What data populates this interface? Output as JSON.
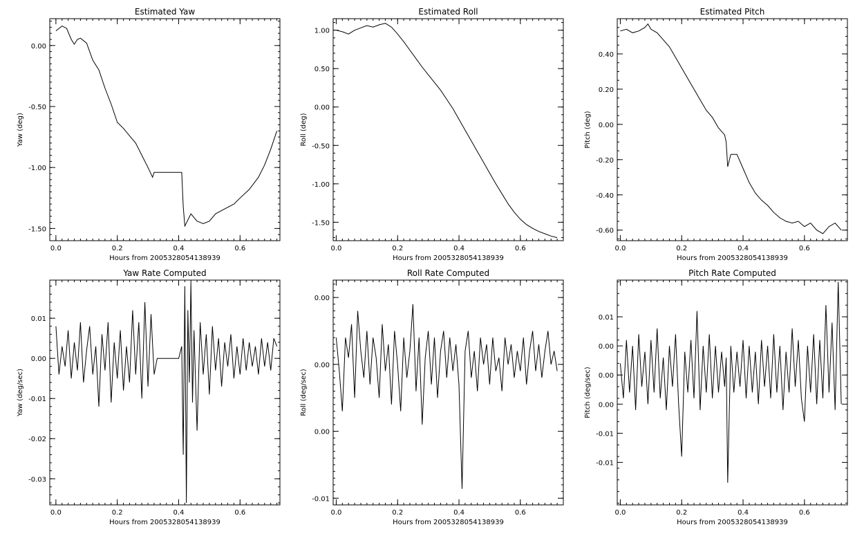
{
  "figure": {
    "background": "#ffffff",
    "line_color": "#000000"
  },
  "chart_data": [
    {
      "type": "line",
      "title": "Estimated Yaw",
      "xlabel": "Hours from 2005328054138939",
      "ylabel": "Yaw (deg)",
      "xlim": [
        -0.02,
        0.73
      ],
      "ylim": [
        -1.6,
        0.22
      ],
      "xticks": [
        0.0,
        0.2,
        0.4,
        0.6
      ],
      "xtick_labels": [
        "0.0",
        "0.2",
        "0.4",
        "0.6"
      ],
      "yticks": [
        0.0,
        -0.5,
        -1.0,
        -1.5
      ],
      "ytick_labels": [
        "0.00",
        "-0.50",
        "-1.00",
        "-1.50"
      ],
      "grid": false,
      "series": [
        {
          "x": [
            0.0,
            0.02,
            0.035,
            0.05,
            0.06,
            0.07,
            0.08,
            0.1,
            0.12,
            0.14,
            0.16,
            0.18,
            0.2,
            0.22,
            0.24,
            0.26,
            0.28,
            0.3,
            0.315,
            0.32,
            0.41,
            0.415,
            0.42,
            0.44,
            0.46,
            0.48,
            0.5,
            0.52,
            0.55,
            0.58,
            0.6,
            0.63,
            0.66,
            0.68,
            0.7,
            0.72
          ],
          "y": [
            0.12,
            0.16,
            0.14,
            0.05,
            0.01,
            0.05,
            0.06,
            0.02,
            -0.12,
            -0.2,
            -0.35,
            -0.48,
            -0.63,
            -0.68,
            -0.74,
            -0.8,
            -0.9,
            -1.0,
            -1.08,
            -1.04,
            -1.04,
            -1.32,
            -1.48,
            -1.38,
            -1.44,
            -1.46,
            -1.44,
            -1.38,
            -1.34,
            -1.3,
            -1.25,
            -1.18,
            -1.08,
            -0.98,
            -0.85,
            -0.7
          ]
        }
      ]
    },
    {
      "type": "line",
      "title": "Estimated Roll",
      "xlabel": "Hours from 2005328054138939",
      "ylabel": "Roll (deg)",
      "xlim": [
        -0.01,
        0.74
      ],
      "ylim": [
        -1.74,
        1.15
      ],
      "xticks": [
        0.0,
        0.2,
        0.4,
        0.6
      ],
      "xtick_labels": [
        "0.0",
        "0.2",
        "0.4",
        "0.6"
      ],
      "yticks": [
        1.0,
        0.5,
        0.0,
        -0.5,
        -1.0,
        -1.5
      ],
      "ytick_labels": [
        "1.00",
        "0.50",
        "0.00",
        "-0.50",
        "-1.00",
        "-1.50"
      ],
      "grid": false,
      "series": [
        {
          "x": [
            0.0,
            0.02,
            0.04,
            0.06,
            0.08,
            0.1,
            0.12,
            0.14,
            0.16,
            0.18,
            0.2,
            0.22,
            0.24,
            0.26,
            0.28,
            0.3,
            0.32,
            0.34,
            0.36,
            0.38,
            0.4,
            0.42,
            0.44,
            0.46,
            0.48,
            0.5,
            0.52,
            0.54,
            0.56,
            0.58,
            0.6,
            0.62,
            0.64,
            0.66,
            0.68,
            0.7,
            0.72
          ],
          "y": [
            1.0,
            0.98,
            0.95,
            1.0,
            1.03,
            1.06,
            1.04,
            1.07,
            1.09,
            1.04,
            0.95,
            0.85,
            0.74,
            0.63,
            0.52,
            0.42,
            0.32,
            0.22,
            0.1,
            -0.02,
            -0.16,
            -0.3,
            -0.44,
            -0.58,
            -0.72,
            -0.86,
            -1.0,
            -1.13,
            -1.26,
            -1.37,
            -1.46,
            -1.53,
            -1.58,
            -1.62,
            -1.65,
            -1.68,
            -1.7
          ]
        }
      ]
    },
    {
      "type": "line",
      "title": "Estimated Pitch",
      "xlabel": "Hours from 2005328054138939",
      "ylabel": "Pitch (deg)",
      "xlim": [
        -0.01,
        0.74
      ],
      "ylim": [
        -0.66,
        0.6
      ],
      "xticks": [
        0.0,
        0.2,
        0.4,
        0.6
      ],
      "xtick_labels": [
        "0.0",
        "0.2",
        "0.4",
        "0.6"
      ],
      "yticks": [
        0.4,
        0.2,
        0.0,
        -0.2,
        -0.4,
        -0.6
      ],
      "ytick_labels": [
        "0.40",
        "0.20",
        "0.00",
        "-0.20",
        "-0.40",
        "-0.60"
      ],
      "grid": false,
      "series": [
        {
          "x": [
            0.0,
            0.02,
            0.04,
            0.06,
            0.08,
            0.09,
            0.1,
            0.12,
            0.14,
            0.16,
            0.18,
            0.2,
            0.22,
            0.24,
            0.26,
            0.28,
            0.3,
            0.32,
            0.34,
            0.345,
            0.35,
            0.36,
            0.38,
            0.4,
            0.42,
            0.44,
            0.46,
            0.48,
            0.5,
            0.52,
            0.54,
            0.56,
            0.58,
            0.6,
            0.62,
            0.64,
            0.66,
            0.68,
            0.7,
            0.72
          ],
          "y": [
            0.53,
            0.54,
            0.52,
            0.53,
            0.55,
            0.57,
            0.54,
            0.52,
            0.48,
            0.44,
            0.38,
            0.32,
            0.26,
            0.2,
            0.14,
            0.08,
            0.04,
            -0.02,
            -0.06,
            -0.1,
            -0.24,
            -0.17,
            -0.17,
            -0.25,
            -0.33,
            -0.39,
            -0.43,
            -0.46,
            -0.5,
            -0.53,
            -0.55,
            -0.56,
            -0.55,
            -0.58,
            -0.56,
            -0.6,
            -0.62,
            -0.58,
            -0.56,
            -0.6
          ]
        }
      ]
    },
    {
      "type": "line",
      "title": "Yaw Rate Computed",
      "xlabel": "Hours from 2005328054138939",
      "ylabel": "Yaw (deg/sec)",
      "xlim": [
        -0.02,
        0.73
      ],
      "ylim": [
        -0.0365,
        0.0195
      ],
      "xticks": [
        0.0,
        0.2,
        0.4,
        0.6
      ],
      "xtick_labels": [
        "0.0",
        "0.2",
        "0.4",
        "0.6"
      ],
      "yticks": [
        0.01,
        0.0,
        -0.01,
        -0.02,
        -0.03
      ],
      "ytick_labels": [
        "0.01",
        "0.00",
        "-0.01",
        "-0.02",
        "-0.03"
      ],
      "grid": false,
      "series": [
        {
          "x": [
            0.0,
            0.01,
            0.02,
            0.03,
            0.04,
            0.05,
            0.06,
            0.07,
            0.08,
            0.09,
            0.1,
            0.11,
            0.12,
            0.13,
            0.14,
            0.15,
            0.16,
            0.17,
            0.18,
            0.19,
            0.2,
            0.21,
            0.22,
            0.23,
            0.24,
            0.25,
            0.26,
            0.27,
            0.28,
            0.29,
            0.3,
            0.31,
            0.32,
            0.33,
            0.35,
            0.4,
            0.41,
            0.415,
            0.42,
            0.425,
            0.43,
            0.435,
            0.44,
            0.445,
            0.45,
            0.46,
            0.47,
            0.48,
            0.49,
            0.5,
            0.51,
            0.52,
            0.53,
            0.54,
            0.55,
            0.56,
            0.57,
            0.58,
            0.59,
            0.6,
            0.61,
            0.62,
            0.63,
            0.64,
            0.65,
            0.66,
            0.67,
            0.68,
            0.69,
            0.7,
            0.71,
            0.72
          ],
          "y": [
            0.008,
            -0.004,
            0.003,
            -0.002,
            0.007,
            -0.005,
            0.004,
            -0.003,
            0.009,
            -0.006,
            0.002,
            0.008,
            -0.004,
            0.003,
            -0.012,
            0.006,
            -0.003,
            0.009,
            -0.011,
            0.004,
            -0.005,
            0.007,
            -0.008,
            0.003,
            -0.006,
            0.012,
            -0.004,
            0.009,
            -0.01,
            0.014,
            -0.007,
            0.011,
            -0.004,
            0.0,
            0.0,
            0.0,
            0.003,
            -0.024,
            0.018,
            -0.036,
            0.012,
            -0.006,
            0.019,
            -0.011,
            0.007,
            -0.018,
            0.009,
            -0.004,
            0.006,
            -0.009,
            0.008,
            -0.003,
            0.005,
            -0.007,
            0.004,
            -0.002,
            0.006,
            -0.005,
            0.003,
            -0.004,
            0.005,
            -0.003,
            0.004,
            -0.002,
            0.003,
            -0.004,
            0.005,
            -0.002,
            0.004,
            -0.003,
            0.005,
            0.003
          ]
        }
      ]
    },
    {
      "type": "line",
      "title": "Roll Rate Computed",
      "xlabel": "Hours from 2005328054138939",
      "ylabel": "Roll (deg/sec)",
      "xlim": [
        -0.01,
        0.74
      ],
      "ylim": [
        -0.0155,
        0.0013
      ],
      "xticks": [
        0.0,
        0.2,
        0.4,
        0.6
      ],
      "xtick_labels": [
        "0.0",
        "0.2",
        "0.4",
        "0.6"
      ],
      "yticks": [
        0.0,
        -0.005,
        -0.01,
        -0.015
      ],
      "ytick_labels": [
        "0.00",
        "0.00",
        "0.00",
        "-0.01"
      ],
      "grid": false,
      "series": [
        {
          "x": [
            0.0,
            0.01,
            0.02,
            0.03,
            0.04,
            0.05,
            0.06,
            0.07,
            0.08,
            0.09,
            0.1,
            0.11,
            0.12,
            0.13,
            0.14,
            0.15,
            0.16,
            0.17,
            0.18,
            0.19,
            0.2,
            0.21,
            0.22,
            0.23,
            0.24,
            0.25,
            0.26,
            0.27,
            0.28,
            0.29,
            0.3,
            0.31,
            0.32,
            0.33,
            0.34,
            0.35,
            0.36,
            0.37,
            0.38,
            0.39,
            0.4,
            0.41,
            0.42,
            0.43,
            0.44,
            0.45,
            0.46,
            0.47,
            0.48,
            0.49,
            0.5,
            0.51,
            0.52,
            0.53,
            0.54,
            0.55,
            0.56,
            0.57,
            0.58,
            0.59,
            0.6,
            0.61,
            0.62,
            0.63,
            0.64,
            0.65,
            0.66,
            0.67,
            0.68,
            0.69,
            0.7,
            0.71,
            0.72
          ],
          "y": [
            -0.003,
            -0.0055,
            -0.0085,
            -0.003,
            -0.0045,
            -0.002,
            -0.0075,
            -0.001,
            -0.004,
            -0.006,
            -0.0025,
            -0.0065,
            -0.003,
            -0.0045,
            -0.0075,
            -0.002,
            -0.0055,
            -0.0035,
            -0.008,
            -0.0025,
            -0.005,
            -0.0085,
            -0.003,
            -0.006,
            -0.004,
            -0.0005,
            -0.007,
            -0.003,
            -0.0095,
            -0.0045,
            -0.0025,
            -0.0065,
            -0.003,
            -0.0075,
            -0.004,
            -0.0025,
            -0.006,
            -0.003,
            -0.0055,
            -0.0035,
            -0.0065,
            -0.0143,
            -0.004,
            -0.0025,
            -0.006,
            -0.004,
            -0.007,
            -0.003,
            -0.005,
            -0.0035,
            -0.0065,
            -0.003,
            -0.0055,
            -0.0045,
            -0.007,
            -0.003,
            -0.005,
            -0.0035,
            -0.006,
            -0.004,
            -0.0055,
            -0.003,
            -0.0065,
            -0.004,
            -0.0025,
            -0.0055,
            -0.0035,
            -0.006,
            -0.004,
            -0.0025,
            -0.005,
            -0.004,
            -0.0055
          ]
        }
      ]
    },
    {
      "type": "line",
      "title": "Pitch Rate Computed",
      "xlabel": "Hours from 2005328054138939",
      "ylabel": "Pitch (deg/sec)",
      "xlim": [
        -0.01,
        0.74
      ],
      "ylim": [
        -0.0223,
        0.0163
      ],
      "xticks": [
        0.0,
        0.2,
        0.4,
        0.6
      ],
      "xtick_labels": [
        "0.0",
        "0.2",
        "0.4",
        "0.6"
      ],
      "yticks": [
        0.01,
        0.005,
        0.0,
        -0.005,
        -0.01,
        -0.015
      ],
      "ytick_labels": [
        "0.01",
        "0.00",
        "0.00",
        "0.00",
        "-0.01",
        "-0.01"
      ],
      "grid": false,
      "series": [
        {
          "x": [
            0.0,
            0.01,
            0.02,
            0.03,
            0.04,
            0.05,
            0.06,
            0.07,
            0.08,
            0.09,
            0.1,
            0.11,
            0.12,
            0.13,
            0.14,
            0.15,
            0.16,
            0.17,
            0.18,
            0.19,
            0.2,
            0.21,
            0.22,
            0.23,
            0.24,
            0.25,
            0.26,
            0.27,
            0.28,
            0.29,
            0.3,
            0.31,
            0.32,
            0.33,
            0.34,
            0.345,
            0.35,
            0.36,
            0.37,
            0.38,
            0.39,
            0.4,
            0.41,
            0.42,
            0.43,
            0.44,
            0.45,
            0.46,
            0.47,
            0.48,
            0.49,
            0.5,
            0.51,
            0.52,
            0.53,
            0.54,
            0.55,
            0.56,
            0.57,
            0.58,
            0.59,
            0.6,
            0.61,
            0.62,
            0.63,
            0.64,
            0.65,
            0.66,
            0.67,
            0.68,
            0.69,
            0.7,
            0.71,
            0.72
          ],
          "y": [
            0.002,
            -0.004,
            0.006,
            -0.003,
            0.005,
            -0.006,
            0.007,
            -0.002,
            0.004,
            -0.005,
            0.006,
            -0.003,
            0.008,
            -0.004,
            0.003,
            -0.006,
            0.005,
            -0.002,
            0.007,
            -0.005,
            -0.014,
            0.004,
            -0.003,
            0.006,
            -0.004,
            0.011,
            -0.006,
            0.005,
            -0.003,
            0.007,
            -0.004,
            0.005,
            -0.003,
            0.004,
            -0.002,
            0.003,
            -0.0185,
            0.005,
            -0.003,
            0.004,
            -0.002,
            0.006,
            -0.004,
            0.005,
            -0.003,
            0.004,
            -0.005,
            0.006,
            -0.002,
            0.005,
            -0.004,
            0.007,
            -0.003,
            0.005,
            -0.006,
            0.004,
            -0.003,
            0.008,
            -0.002,
            0.006,
            -0.004,
            -0.008,
            0.005,
            -0.003,
            0.007,
            -0.005,
            0.006,
            -0.004,
            0.012,
            -0.003,
            0.009,
            -0.006,
            0.016,
            -0.005
          ]
        }
      ]
    }
  ]
}
